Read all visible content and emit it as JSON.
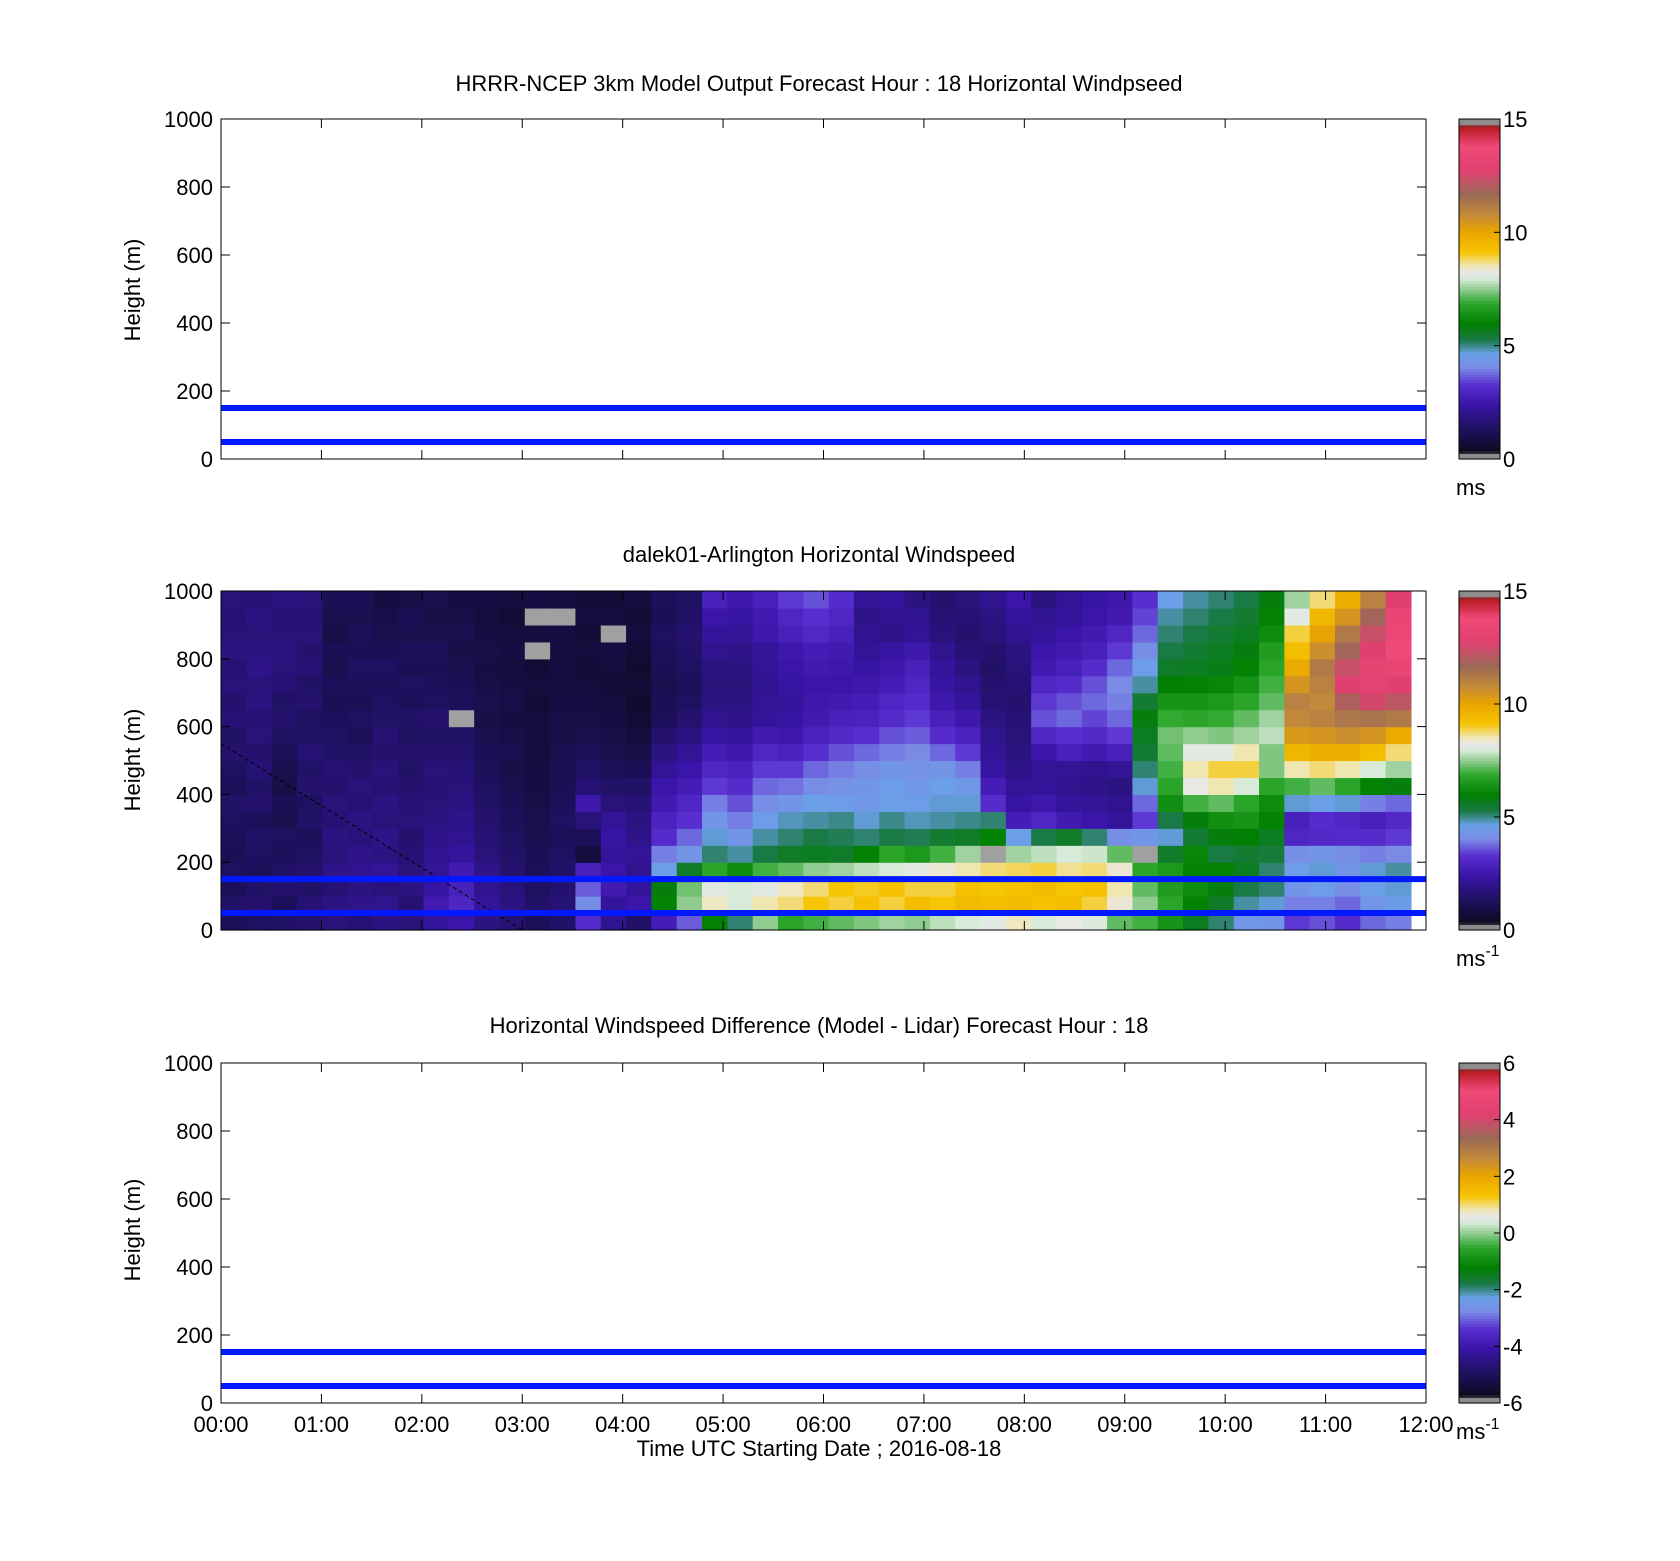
{
  "figure": {
    "xlabel": "Time UTC  Starting Date ; 2016-08-18"
  },
  "colors": {
    "axis": "#000000",
    "reference_line": "#0018ff",
    "background": "#ffffff"
  },
  "chart_data": [
    {
      "id": "model",
      "type": "heatmap",
      "title": "HRRR-NCEP 3km Model Output   Forecast Hour : 18 Horizontal Windpseed",
      "ylabel": "Height (m)",
      "xlabel": "",
      "x_ticks": [
        "00:00",
        "01:00",
        "02:00",
        "03:00",
        "04:00",
        "05:00",
        "06:00",
        "07:00",
        "08:00",
        "09:00",
        "10:00",
        "11:00",
        "12:00"
      ],
      "x_ticks_shown": false,
      "xlim_hours": [
        0,
        12
      ],
      "ylim": [
        0,
        1000
      ],
      "y_ticks": [
        0,
        200,
        400,
        600,
        800,
        1000
      ],
      "reference_lines_m": [
        50,
        150
      ],
      "colorbar": {
        "min": 0,
        "max": 15,
        "ticks": [
          0,
          5,
          10,
          15
        ],
        "unit_label": "ms",
        "unit_sup": ""
      },
      "has_data": false
    },
    {
      "id": "lidar",
      "type": "heatmap",
      "title": "dalek01-Arlington  Horizontal Windspeed",
      "ylabel": "Height (m)",
      "xlabel": "",
      "x_ticks": [
        "00:00",
        "01:00",
        "02:00",
        "03:00",
        "04:00",
        "05:00",
        "06:00",
        "07:00",
        "08:00",
        "09:00",
        "10:00",
        "11:00",
        "12:00"
      ],
      "x_ticks_shown": false,
      "xlim_hours": [
        0,
        12
      ],
      "ylim": [
        0,
        1000
      ],
      "y_ticks": [
        0,
        200,
        400,
        600,
        800,
        1000
      ],
      "reference_lines_m": [
        50,
        150
      ],
      "colorbar": {
        "min": 0,
        "max": 15,
        "ticks": [
          0,
          5,
          10,
          15
        ],
        "unit_label": "ms",
        "unit_sup": "-1"
      },
      "has_data": true,
      "data_x_end_hours": 11.85,
      "heights_m": [
        25,
        75,
        125,
        175,
        225,
        275,
        325,
        375,
        425,
        475,
        525,
        575,
        625,
        675,
        725,
        775,
        825,
        875,
        925,
        975
      ],
      "times_hours": [
        0.125,
        0.375,
        0.625,
        0.875,
        1.125,
        1.375,
        1.625,
        1.875,
        2.125,
        2.375,
        2.625,
        2.875,
        3.125,
        3.375,
        3.625,
        3.875,
        4.125,
        4.375,
        4.625,
        4.875,
        5.125,
        5.375,
        5.625,
        5.875,
        6.125,
        6.375,
        6.625,
        6.875,
        7.125,
        7.375,
        7.625,
        7.875,
        8.125,
        8.375,
        8.625,
        8.875,
        9.125,
        9.375,
        9.625,
        9.875,
        10.125,
        10.375,
        10.625,
        10.875,
        11.125,
        11.375,
        11.625
      ],
      "windspeed_profiles_ms": [
        [
          1.0,
          1.2,
          1.0,
          1.1,
          0.9,
          1.0,
          1.1,
          1.2,
          1.0,
          1.1,
          1.3,
          1.2,
          1.4,
          1.3,
          1.5,
          1.4,
          1.6,
          1.5,
          1.4,
          1.5
        ],
        [
          1.1,
          1.3,
          1.2,
          1.0,
          1.1,
          1.2,
          1.0,
          1.3,
          1.2,
          1.4,
          1.3,
          1.5,
          1.4,
          1.6,
          1.5,
          1.7,
          1.6,
          1.5,
          1.6,
          1.4
        ],
        [
          1.2,
          1.0,
          1.3,
          1.2,
          1.0,
          1.1,
          0.8,
          0.9,
          0.7,
          0.8,
          1.0,
          1.1,
          1.3,
          1.2,
          1.4,
          1.5,
          1.6,
          1.5,
          1.4,
          1.6
        ],
        [
          1.3,
          1.4,
          1.2,
          1.3,
          1.1,
          1.0,
          1.2,
          1.1,
          1.3,
          1.2,
          1.4,
          1.2,
          1.1,
          1.3,
          1.2,
          1.4,
          1.3,
          1.5,
          1.4,
          1.5
        ],
        [
          1.5,
          1.6,
          1.4,
          1.7,
          1.5,
          1.6,
          1.4,
          1.5,
          1.3,
          1.4,
          1.2,
          1.1,
          1.0,
          0.9,
          1.0,
          0.8,
          0.9,
          0.7,
          0.8,
          0.9
        ],
        [
          1.4,
          1.7,
          1.6,
          1.8,
          1.7,
          1.5,
          1.6,
          1.4,
          1.5,
          1.3,
          1.2,
          1.0,
          1.1,
          0.9,
          1.0,
          1.1,
          0.9,
          1.0,
          0.8,
          0.9
        ],
        [
          1.6,
          1.8,
          1.5,
          1.9,
          1.6,
          1.7,
          1.5,
          1.6,
          1.4,
          1.5,
          1.3,
          1.4,
          1.2,
          1.1,
          1.0,
          1.1,
          0.9,
          0.8,
          0.7,
          0.6
        ],
        [
          1.5,
          1.3,
          1.6,
          1.5,
          1.4,
          1.3,
          1.5,
          1.4,
          1.3,
          1.2,
          1.3,
          1.1,
          1.2,
          1.0,
          1.1,
          0.9,
          1.0,
          0.8,
          0.9,
          0.7
        ],
        [
          2.0,
          2.4,
          2.1,
          1.9,
          1.8,
          1.7,
          1.6,
          1.5,
          1.4,
          1.5,
          1.3,
          1.2,
          1.3,
          1.1,
          1.0,
          0.9,
          1.0,
          0.8,
          0.7,
          0.8
        ],
        [
          2.2,
          2.8,
          2.6,
          2.4,
          2.0,
          1.8,
          1.7,
          1.6,
          1.5,
          1.4,
          1.3,
          1.2,
          -1,
          1.0,
          0.9,
          0.8,
          0.7,
          0.8,
          0.7,
          0.6
        ],
        [
          1.6,
          2.0,
          1.8,
          1.7,
          1.5,
          1.4,
          1.3,
          1.2,
          1.1,
          1.0,
          0.9,
          0.8,
          0.7,
          0.8,
          0.7,
          0.6,
          0.7,
          0.6,
          0.5,
          0.6
        ],
        [
          1.4,
          1.6,
          1.5,
          1.3,
          1.2,
          1.1,
          1.0,
          0.9,
          0.8,
          0.7,
          0.8,
          0.7,
          0.6,
          0.7,
          0.6,
          0.5,
          0.6,
          0.5,
          0.4,
          0.5
        ],
        [
          1.0,
          1.2,
          1.1,
          1.0,
          0.9,
          0.8,
          0.8,
          0.7,
          0.6,
          0.6,
          0.5,
          0.5,
          0.5,
          0.4,
          0.5,
          0.4,
          -1,
          0.5,
          -1,
          0.6
        ],
        [
          1.2,
          1.4,
          1.3,
          1.2,
          1.1,
          1.0,
          1.1,
          1.0,
          0.9,
          0.8,
          0.8,
          0.7,
          0.7,
          0.6,
          0.5,
          0.6,
          0.5,
          0.6,
          -1,
          0.5
        ],
        [
          3.0,
          4.0,
          3.5,
          2.6,
          0.5,
          1.0,
          1.5,
          2.3,
          1.4,
          1.2,
          1.0,
          0.8,
          0.7,
          0.6,
          0.5,
          0.4,
          0.5,
          0.4,
          0.5,
          0.4
        ],
        [
          1.8,
          2.0,
          2.4,
          2.2,
          2.0,
          2.1,
          1.9,
          1.5,
          1.2,
          1.0,
          0.8,
          0.7,
          0.6,
          0.5,
          0.4,
          0.5,
          0.6,
          -1,
          0.5,
          0.4
        ],
        [
          1.2,
          2.2,
          2.0,
          1.8,
          1.9,
          1.7,
          1.6,
          1.4,
          1.2,
          0.9,
          0.7,
          0.5,
          0.4,
          0.3,
          0.4,
          0.3,
          0.4,
          0.5,
          0.4,
          0.5
        ],
        [
          2.5,
          6.0,
          5.8,
          4.5,
          3.8,
          3.0,
          2.7,
          2.4,
          2.2,
          1.9,
          1.6,
          1.3,
          1.0,
          0.9,
          0.8,
          0.9,
          1.0,
          1.1,
          0.9,
          1.0
        ],
        [
          3.5,
          7.5,
          7.3,
          5.5,
          4.2,
          3.6,
          3.1,
          2.8,
          2.5,
          2.2,
          1.9,
          1.6,
          1.3,
          1.1,
          1.0,
          1.1,
          1.2,
          1.3,
          1.2,
          1.1
        ],
        [
          6.0,
          8.5,
          8.2,
          6.8,
          5.0,
          4.6,
          4.2,
          3.8,
          3.2,
          2.8,
          2.5,
          2.1,
          1.8,
          1.6,
          1.5,
          1.6,
          1.8,
          2.0,
          2.2,
          2.6
        ],
        [
          5.0,
          8.0,
          8.0,
          6.2,
          4.8,
          4.2,
          3.8,
          3.4,
          3.0,
          2.7,
          2.3,
          2.0,
          1.7,
          1.6,
          1.5,
          1.6,
          1.7,
          1.9,
          2.1,
          2.3
        ],
        [
          7.5,
          8.6,
          8.2,
          7.0,
          5.2,
          4.8,
          4.4,
          4.0,
          3.6,
          3.2,
          2.8,
          2.4,
          2.0,
          1.9,
          1.8,
          1.9,
          2.0,
          2.3,
          2.4,
          2.6
        ],
        [
          6.8,
          8.8,
          8.5,
          7.2,
          5.5,
          5.0,
          4.7,
          4.2,
          3.7,
          3.2,
          2.7,
          2.3,
          2.1,
          2.0,
          2.1,
          2.2,
          2.3,
          2.6,
          2.8,
          3.2
        ],
        [
          7.0,
          9.2,
          8.8,
          7.5,
          5.6,
          5.2,
          4.8,
          4.5,
          4.0,
          3.6,
          3.1,
          2.7,
          2.4,
          2.3,
          2.2,
          2.4,
          2.5,
          2.9,
          3.1,
          3.4
        ],
        [
          7.2,
          9.0,
          9.2,
          7.6,
          5.5,
          5.1,
          4.9,
          4.4,
          4.1,
          3.8,
          3.4,
          2.9,
          2.6,
          2.4,
          2.2,
          2.3,
          2.4,
          2.6,
          2.8,
          3.0
        ],
        [
          7.4,
          9.3,
          9.1,
          7.8,
          6.0,
          5.0,
          4.6,
          4.3,
          4.2,
          4.0,
          3.6,
          3.1,
          2.7,
          2.5,
          2.3,
          2.1,
          1.9,
          1.8,
          1.7,
          1.9
        ],
        [
          7.6,
          9.0,
          9.3,
          8.0,
          6.8,
          5.2,
          4.9,
          4.5,
          4.4,
          4.2,
          3.8,
          3.4,
          3.0,
          2.8,
          2.5,
          2.3,
          2.1,
          1.7,
          1.8,
          2.0
        ],
        [
          7.5,
          9.4,
          9.0,
          8.2,
          6.5,
          5.1,
          4.7,
          4.4,
          4.3,
          4.1,
          3.9,
          3.5,
          3.2,
          3.0,
          2.8,
          2.6,
          2.3,
          1.9,
          1.8,
          1.6
        ],
        [
          7.8,
          9.2,
          9.0,
          8.4,
          7.0,
          5.4,
          4.8,
          4.6,
          4.5,
          4.2,
          3.6,
          3.0,
          2.6,
          2.3,
          2.1,
          2.0,
          1.8,
          1.5,
          1.4,
          1.3
        ],
        [
          8.0,
          9.5,
          9.3,
          8.6,
          7.6,
          5.5,
          4.9,
          4.6,
          4.3,
          3.8,
          3.2,
          2.7,
          2.3,
          2.0,
          1.8,
          1.6,
          1.4,
          1.3,
          1.4,
          1.5
        ],
        [
          8.2,
          9.4,
          9.2,
          8.8,
          -1,
          6.0,
          5.0,
          3.0,
          2.5,
          2.1,
          1.9,
          1.8,
          1.6,
          1.4,
          1.3,
          1.2,
          1.3,
          1.5,
          1.6,
          1.8
        ],
        [
          8.5,
          9.5,
          9.3,
          8.9,
          7.6,
          4.5,
          2.5,
          2.1,
          1.9,
          1.7,
          1.6,
          1.5,
          1.4,
          1.3,
          1.4,
          1.5,
          1.6,
          1.8,
          2.0,
          2.2
        ],
        [
          8.0,
          9.3,
          9.5,
          9.0,
          7.8,
          5.2,
          2.8,
          2.3,
          2.0,
          1.9,
          2.2,
          2.8,
          3.4,
          3.2,
          2.8,
          2.4,
          2.2,
          2.0,
          1.8,
          1.6
        ],
        [
          8.3,
          9.4,
          9.2,
          8.7,
          8.0,
          5.5,
          2.4,
          2.0,
          1.8,
          1.9,
          2.6,
          3.1,
          3.6,
          3.4,
          3.0,
          2.6,
          2.4,
          2.2,
          2.0,
          1.9
        ],
        [
          8.1,
          9.0,
          9.3,
          8.8,
          7.9,
          5.0,
          2.2,
          1.9,
          1.7,
          1.8,
          2.4,
          2.9,
          3.3,
          3.6,
          3.4,
          3.0,
          2.6,
          2.4,
          2.2,
          2.1
        ],
        [
          7.2,
          8.4,
          8.6,
          8.4,
          7.2,
          4.0,
          2.0,
          1.8,
          1.6,
          1.9,
          2.6,
          3.2,
          3.6,
          3.8,
          3.9,
          3.6,
          3.2,
          2.8,
          2.4,
          2.3
        ],
        [
          7.0,
          7.5,
          7.2,
          6.8,
          -1,
          4.2,
          3.2,
          3.6,
          4.6,
          5.0,
          5.4,
          5.6,
          5.8,
          5.4,
          4.8,
          4.4,
          4.0,
          3.6,
          3.3,
          3.1
        ],
        [
          6.4,
          6.8,
          6.6,
          6.5,
          5.5,
          4.6,
          5.2,
          6.3,
          6.8,
          7.0,
          7.2,
          7.3,
          6.9,
          6.4,
          5.9,
          5.5,
          5.2,
          5.0,
          4.8,
          4.5
        ],
        [
          5.6,
          6.0,
          6.2,
          6.0,
          6.1,
          5.4,
          5.8,
          7.0,
          8.3,
          8.6,
          8.2,
          7.5,
          6.8,
          6.4,
          6.0,
          5.6,
          5.4,
          5.2,
          5.0,
          4.8
        ],
        [
          5.0,
          5.5,
          5.8,
          6.0,
          5.2,
          5.8,
          6.3,
          7.2,
          8.6,
          9.0,
          8.2,
          7.4,
          6.9,
          6.5,
          6.1,
          5.7,
          5.6,
          5.4,
          5.2,
          5.0
        ],
        [
          4.3,
          4.8,
          5.2,
          5.6,
          5.4,
          5.9,
          6.4,
          6.8,
          8.0,
          9.0,
          8.6,
          7.6,
          7.2,
          6.8,
          6.4,
          6.0,
          5.8,
          5.6,
          5.4,
          5.2
        ],
        [
          4.2,
          4.6,
          5.0,
          5.0,
          5.3,
          5.6,
          6.0,
          6.2,
          6.8,
          7.4,
          7.4,
          7.8,
          7.6,
          7.2,
          7.0,
          6.8,
          6.6,
          6.2,
          6.0,
          5.8
        ],
        [
          3.2,
          3.8,
          4.2,
          4.4,
          4.0,
          2.8,
          2.6,
          4.6,
          7.0,
          8.6,
          9.6,
          10.5,
          11.0,
          11.2,
          10.6,
          10.0,
          9.4,
          9.0,
          8.2,
          7.6
        ],
        [
          3.4,
          3.8,
          4.4,
          4.6,
          4.2,
          2.9,
          3.0,
          4.5,
          7.2,
          8.8,
          9.8,
          10.6,
          11.2,
          11.0,
          11.2,
          11.4,
          10.8,
          10.2,
          9.6,
          8.8
        ],
        [
          3.0,
          3.6,
          4.0,
          4.2,
          4.0,
          3.0,
          2.8,
          4.6,
          6.8,
          8.6,
          9.8,
          10.8,
          11.5,
          12.2,
          13.0,
          12.6,
          12.0,
          11.4,
          10.6,
          9.8
        ],
        [
          3.6,
          4.2,
          4.5,
          4.6,
          3.8,
          3.0,
          2.6,
          3.8,
          6.0,
          8.0,
          9.4,
          10.6,
          11.6,
          12.8,
          13.2,
          13.4,
          13.0,
          12.6,
          12.0,
          11.2
        ],
        [
          3.8,
          4.4,
          4.6,
          4.8,
          3.9,
          3.2,
          2.9,
          3.6,
          5.8,
          7.6,
          8.8,
          10.0,
          11.4,
          12.4,
          13.0,
          13.6,
          14.0,
          13.8,
          13.6,
          13.0
        ]
      ]
    },
    {
      "id": "difference",
      "type": "heatmap",
      "title": "Horizontal Windspeed Difference (Model - Lidar) Forecast Hour : 18",
      "ylabel": "Height (m)",
      "xlabel": "Time UTC  Starting Date ; 2016-08-18",
      "x_ticks": [
        "00:00",
        "01:00",
        "02:00",
        "03:00",
        "04:00",
        "05:00",
        "06:00",
        "07:00",
        "08:00",
        "09:00",
        "10:00",
        "11:00",
        "12:00"
      ],
      "x_ticks_shown": true,
      "xlim_hours": [
        0,
        12
      ],
      "ylim": [
        0,
        1000
      ],
      "y_ticks": [
        0,
        200,
        400,
        600,
        800,
        1000
      ],
      "reference_lines_m": [
        50,
        150
      ],
      "colorbar": {
        "min": -6,
        "max": 6,
        "ticks": [
          -6,
          -4,
          -2,
          0,
          2,
          4,
          6
        ],
        "unit_label": "ms",
        "unit_sup": "-1"
      },
      "has_data": false
    }
  ]
}
